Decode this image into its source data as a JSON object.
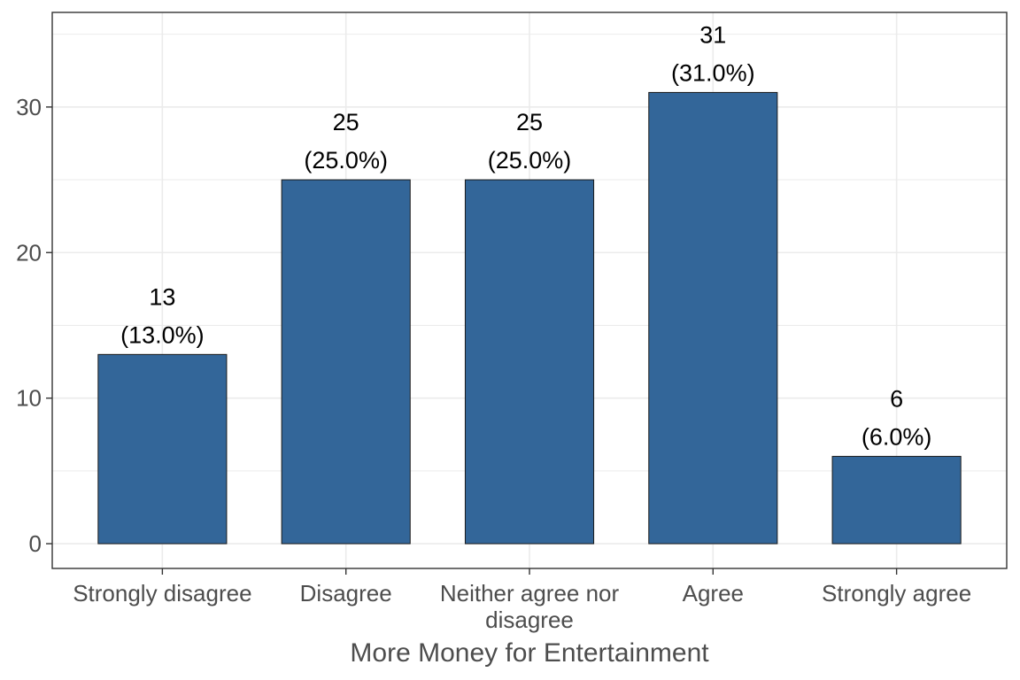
{
  "chart_data": {
    "type": "bar",
    "title": "",
    "xlabel": "More Money for Entertainment",
    "ylabel": "",
    "categories": [
      "Strongly disagree",
      "Disagree",
      "Neither agree nor disagree",
      "Agree",
      "Strongly agree"
    ],
    "category_lines": [
      [
        "Strongly disagree"
      ],
      [
        "Disagree"
      ],
      [
        "Neither agree nor",
        "disagree"
      ],
      [
        "Agree"
      ],
      [
        "Strongly agree"
      ]
    ],
    "values": [
      13,
      25,
      25,
      31,
      6
    ],
    "value_labels": [
      "13",
      "25",
      "25",
      "31",
      "6"
    ],
    "percent_labels": [
      "(13.0%)",
      "(25.0%)",
      "(25.0%)",
      "(31.0%)",
      "(6.0%)"
    ],
    "yticks": [
      0,
      10,
      20,
      30
    ],
    "ytick_labels": [
      "0",
      "10",
      "20",
      "30"
    ],
    "ylim": [
      -1.7,
      36.5
    ],
    "grid": true,
    "bar_color": "#336699",
    "bar_outline": "#1a1a1a",
    "grid_color": "#ebebeb",
    "panel_border_color": "#333333"
  }
}
